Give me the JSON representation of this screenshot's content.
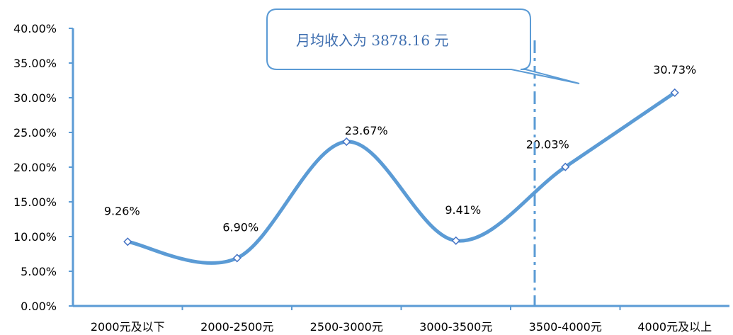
{
  "chart_data": {
    "type": "line",
    "title": "",
    "xlabel": "",
    "ylabel": "",
    "categories": [
      "2000元及以下",
      "2000-2500元",
      "2500-3000元",
      "3000-3500元",
      "3500-4000元",
      "4000元及以上"
    ],
    "series": [
      {
        "values": [
          9.26,
          6.9,
          23.67,
          9.41,
          20.03,
          30.73
        ]
      }
    ],
    "data_labels": [
      "9.26%",
      "6.90%",
      "23.67%",
      "9.41%",
      "20.03%",
      "30.73%"
    ],
    "ylim": [
      0,
      40
    ],
    "yticks": [
      0,
      5,
      10,
      15,
      20,
      25,
      30,
      35,
      40
    ],
    "ytick_labels": [
      "0.00%",
      "5.00%",
      "10.00%",
      "15.00%",
      "20.00%",
      "25.00%",
      "30.00%",
      "35.00%",
      "40.00%"
    ],
    "smooth": true,
    "grid": false,
    "legend": "none",
    "annotation": {
      "text": "月均收入为 3878.16 元",
      "marker_value_position": 4.22
    },
    "colors": {
      "line": "#5b9bd5",
      "axis": "#5b9bd5",
      "marker_fill": "#ffffff",
      "marker_stroke": "#4472c4",
      "callout_border": "#5b9bd5",
      "callout_text": "#3f6fb0"
    }
  }
}
